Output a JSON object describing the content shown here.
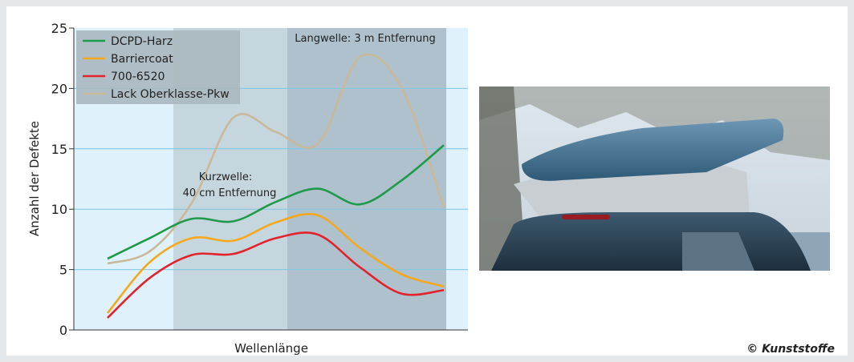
{
  "chart_data": {
    "type": "line",
    "ylabel": "Anzahl der Defekte",
    "xlabel": "Wellenlänge",
    "categories": [
      null,
      null,
      null,
      null,
      null,
      null,
      null,
      null,
      null
    ],
    "ylim": [
      0,
      25
    ],
    "yticks": [
      0,
      5,
      10,
      15,
      20,
      25
    ],
    "grid": true,
    "legend": "upper left",
    "annotations": [
      "Kurzwelle:",
      "40 cm Entfernung",
      "Langwelle: 3 m Entfernung"
    ],
    "series": [
      {
        "name": "DCPD-Harz",
        "color": "#1e9a4a",
        "values": [
          5.9,
          7.6,
          9.2,
          9.0,
          10.6,
          11.7,
          10.4,
          12.4,
          15.3
        ]
      },
      {
        "name": "Barriercoat",
        "color": "#f5a81c",
        "values": [
          1.4,
          5.6,
          7.6,
          7.4,
          8.9,
          9.5,
          6.8,
          4.6,
          3.6
        ]
      },
      {
        "name": "700-6520",
        "color": "#e3232b",
        "values": [
          1.0,
          4.3,
          6.2,
          6.3,
          7.6,
          7.9,
          5.2,
          3.0,
          3.3
        ]
      },
      {
        "name": "Lack Oberklasse-Pkw",
        "color": "#c9b99b",
        "values": [
          5.5,
          6.5,
          10.5,
          17.6,
          16.4,
          15.4,
          22.6,
          20.0,
          10.1
        ]
      }
    ]
  },
  "credit": "© Kunststoffe"
}
